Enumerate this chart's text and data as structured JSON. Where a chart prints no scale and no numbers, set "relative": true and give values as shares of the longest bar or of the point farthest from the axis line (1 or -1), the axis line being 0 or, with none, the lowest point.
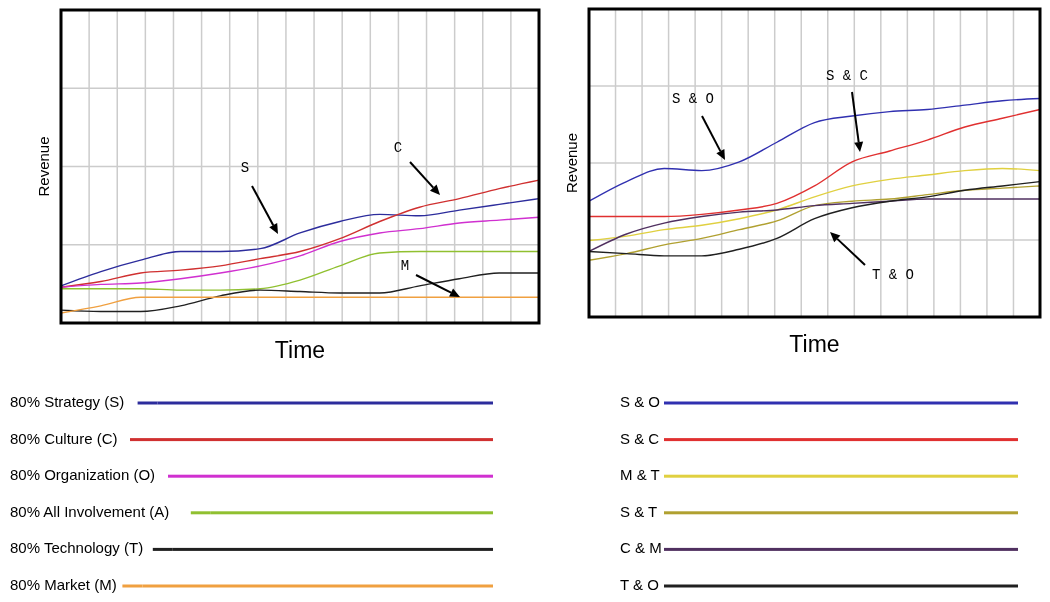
{
  "chart_data": [
    {
      "type": "line",
      "relative": true,
      "xlabel": "Time",
      "ylabel": "Revenue",
      "grid": true,
      "legend": "bottom",
      "marker": "none",
      "line_style": "solid",
      "categories": [
        null,
        null,
        null,
        null,
        null,
        null,
        null,
        null,
        null,
        null,
        null,
        null,
        null
      ],
      "series": [
        {
          "name": "80% Strategy (S)",
          "color": "#2c2c9c",
          "values": [
            0.26,
            0.36,
            0.44,
            0.5,
            0.5,
            0.52,
            0.63,
            0.71,
            0.76,
            0.75,
            0.79,
            0.83,
            0.87
          ]
        },
        {
          "name": "80% Culture (C)",
          "color": "#d03030",
          "values": [
            0.25,
            0.29,
            0.35,
            0.37,
            0.4,
            0.45,
            0.5,
            0.59,
            0.71,
            0.81,
            0.87,
            0.94,
            1
          ]
        },
        {
          "name": "80% Organization (O)",
          "color": "#d030d0",
          "values": [
            0.25,
            0.27,
            0.28,
            0.31,
            0.35,
            0.4,
            0.47,
            0.57,
            0.63,
            0.66,
            0.7,
            0.72,
            0.74
          ]
        },
        {
          "name": "80% All Involvement (A)",
          "color": "#90c030",
          "values": [
            0.24,
            0.24,
            0.24,
            0.23,
            0.23,
            0.24,
            0.3,
            0.4,
            0.49,
            0.5,
            0.5,
            0.5,
            0.5
          ]
        },
        {
          "name": "80% Technology (T)",
          "color": "#202020",
          "values": [
            0.09,
            0.08,
            0.08,
            0.12,
            0.19,
            0.23,
            0.22,
            0.21,
            0.21,
            0.26,
            0.31,
            0.35,
            0.35
          ]
        },
        {
          "name": "80% Market (M)",
          "color": "#f0a040",
          "values": [
            0.07,
            0.12,
            0.18,
            0.18,
            0.18,
            0.18,
            0.18,
            0.18,
            0.18,
            0.18,
            0.18,
            0.18,
            0.18
          ]
        }
      ],
      "annotations": [
        "S",
        "C",
        "M"
      ]
    },
    {
      "type": "line",
      "relative": true,
      "xlabel": "Time",
      "ylabel": "Revenue",
      "grid": true,
      "legend": "bottom",
      "marker": "none",
      "line_style": "solid",
      "categories": [
        null,
        null,
        null,
        null,
        null,
        null,
        null,
        null,
        null,
        null,
        null,
        null,
        null
      ],
      "series": [
        {
          "name": "S & O",
          "color": "#3030b0",
          "values": [
            0.53,
            0.62,
            0.68,
            0.67,
            0.71,
            0.8,
            0.89,
            0.92,
            0.94,
            0.95,
            0.97,
            0.99,
            1
          ]
        },
        {
          "name": "S & C",
          "color": "#e03030",
          "values": [
            0.46,
            0.46,
            0.46,
            0.47,
            0.49,
            0.52,
            0.6,
            0.71,
            0.76,
            0.81,
            0.87,
            0.91,
            0.95
          ]
        },
        {
          "name": "M & T",
          "color": "#e0d040",
          "values": [
            0.35,
            0.37,
            0.4,
            0.42,
            0.45,
            0.49,
            0.55,
            0.6,
            0.63,
            0.65,
            0.67,
            0.68,
            0.67
          ]
        },
        {
          "name": "S & T",
          "color": "#b0a030",
          "values": [
            0.26,
            0.29,
            0.33,
            0.36,
            0.4,
            0.44,
            0.51,
            0.53,
            0.54,
            0.56,
            0.58,
            0.59,
            0.6
          ]
        },
        {
          "name": "C & M",
          "color": "#503060",
          "values": [
            0.3,
            0.38,
            0.43,
            0.46,
            0.48,
            0.49,
            0.51,
            0.52,
            0.53,
            0.54,
            0.54,
            0.54,
            0.54
          ]
        },
        {
          "name": "T & O",
          "color": "#202020",
          "values": [
            0.3,
            0.29,
            0.28,
            0.28,
            0.31,
            0.36,
            0.45,
            0.5,
            0.53,
            0.55,
            0.58,
            0.6,
            0.62
          ]
        }
      ],
      "annotations": [
        "S & O",
        "S & C",
        "T & O"
      ]
    }
  ]
}
